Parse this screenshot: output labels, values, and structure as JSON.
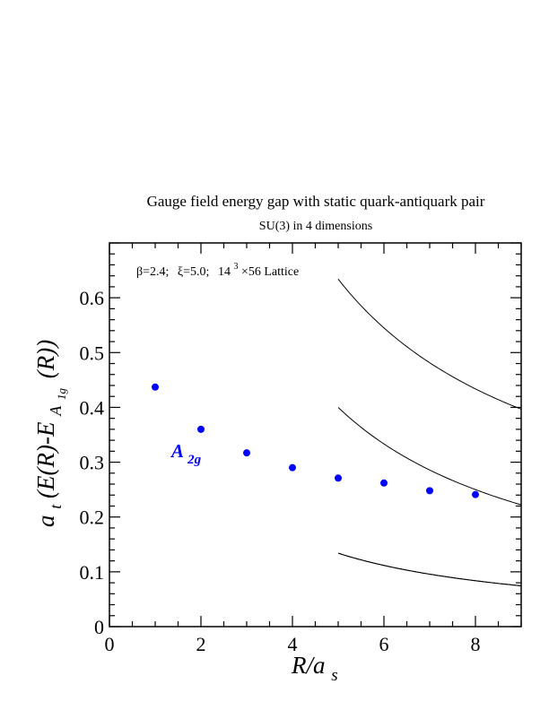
{
  "chart_data": {
    "type": "scatter",
    "title": "Gauge field energy gap with static quark-antiquark pair",
    "subtitle": "SU(3) in 4 dimensions",
    "annotation": {
      "beta_label": "β=2.4;",
      "xi_label": "ξ=5.0;",
      "lattice_base": "14",
      "lattice_exp": "3",
      "lattice_rest": "×56 Lattice"
    },
    "xlabel": {
      "main": "R/a",
      "sub": "s"
    },
    "ylabel": {
      "prefix": "a",
      "sub_t": "t",
      "middle": "(E(R)-E",
      "sub_A": "A",
      "sub_1g": "1g",
      "suffix": "(R))"
    },
    "xlim": [
      0,
      9
    ],
    "ylim": [
      0,
      0.7
    ],
    "x_ticks": [
      0,
      2,
      4,
      6,
      8
    ],
    "x_tick_labels": [
      "0",
      "2",
      "4",
      "6",
      "8"
    ],
    "y_ticks": [
      0,
      0.1,
      0.2,
      0.3,
      0.4,
      0.5,
      0.6
    ],
    "y_tick_labels": [
      "0",
      "0.1",
      "0.2",
      "0.3",
      "0.4",
      "0.5",
      "0.6"
    ],
    "grid": false,
    "series": [
      {
        "label_main": "A",
        "label_sub": "2g",
        "color": "#0000ff",
        "x": [
          1,
          2,
          3,
          4,
          5,
          6,
          7,
          8
        ],
        "y": [
          0.437,
          0.36,
          0.317,
          0.29,
          0.271,
          0.262,
          0.248,
          0.241
        ]
      }
    ],
    "reference_curves": {
      "color": "#000000",
      "x_range": [
        5,
        9
      ],
      "coefficients": [
        0.67,
        2.0,
        2.67,
        0.67
      ],
      "offsets": [
        0,
        0,
        0.1,
        0
      ]
    }
  }
}
